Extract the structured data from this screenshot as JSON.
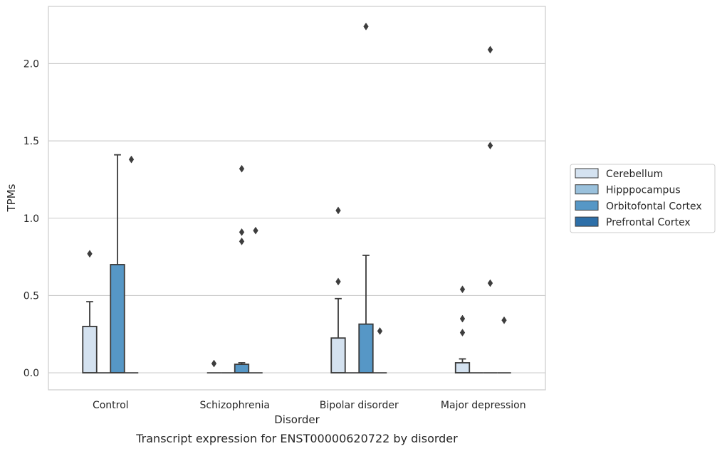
{
  "chart_data": {
    "type": "box",
    "xlabel": "Disorder",
    "ylabel": "TPMs",
    "caption": "Transcript expression for ENST00000620722 by disorder",
    "categories": [
      "Control",
      "Schizophrenia",
      "Bipolar disorder",
      "Major depression"
    ],
    "ylim": [
      -0.11,
      2.37
    ],
    "yticks": [
      "0.0",
      "0.5",
      "1.0",
      "1.5",
      "2.0"
    ],
    "grid": true,
    "legend_position": "right",
    "series": [
      {
        "name": "Cerebellum",
        "color": "#d4e2f0",
        "boxes": [
          {
            "q1": 0.0,
            "median": 0.0,
            "q3": 0.3,
            "whisker_low": 0.0,
            "whisker_high": 0.46,
            "outliers": [
              0.77
            ]
          },
          {
            "q1": 0.0,
            "median": 0.0,
            "q3": 0.0,
            "whisker_low": 0.0,
            "whisker_high": 0.0,
            "outliers": [
              0.06
            ]
          },
          {
            "q1": 0.0,
            "median": 0.0,
            "q3": 0.225,
            "whisker_low": 0.0,
            "whisker_high": 0.48,
            "outliers": [
              0.59,
              1.05
            ]
          },
          {
            "q1": 0.0,
            "median": 0.0,
            "q3": 0.065,
            "whisker_low": 0.0,
            "whisker_high": 0.09,
            "outliers": [
              0.26,
              0.35,
              0.54
            ]
          }
        ]
      },
      {
        "name": "Hipppocampus",
        "color": "#9ac1dc",
        "boxes": [
          {
            "q1": 0.0,
            "median": 0.0,
            "q3": 0.0,
            "whisker_low": 0.0,
            "whisker_high": 0.0,
            "outliers": []
          },
          {
            "q1": 0.0,
            "median": 0.0,
            "q3": 0.0,
            "whisker_low": 0.0,
            "whisker_high": 0.0,
            "outliers": []
          },
          {
            "q1": 0.0,
            "median": 0.0,
            "q3": 0.0,
            "whisker_low": 0.0,
            "whisker_high": 0.0,
            "outliers": []
          },
          {
            "q1": 0.0,
            "median": 0.0,
            "q3": 0.0,
            "whisker_low": 0.0,
            "whisker_high": 0.0,
            "outliers": []
          }
        ]
      },
      {
        "name": "Orbitofontal Cortex",
        "color": "#5697c6",
        "boxes": [
          {
            "q1": 0.0,
            "median": 0.0,
            "q3": 0.7,
            "whisker_low": 0.0,
            "whisker_high": 1.41,
            "outliers": []
          },
          {
            "q1": 0.0,
            "median": 0.0,
            "q3": 0.055,
            "whisker_low": 0.0,
            "whisker_high": 0.065,
            "outliers": [
              0.85,
              0.91,
              1.32
            ]
          },
          {
            "q1": 0.0,
            "median": 0.0,
            "q3": 0.315,
            "whisker_low": 0.0,
            "whisker_high": 0.76,
            "outliers": [
              2.24
            ]
          },
          {
            "q1": 0.0,
            "median": 0.0,
            "q3": 0.0,
            "whisker_low": 0.0,
            "whisker_high": 0.0,
            "outliers": [
              0.58,
              1.47,
              2.09
            ]
          }
        ]
      },
      {
        "name": "Prefrontal Cortex",
        "color": "#2d6fa8",
        "boxes": [
          {
            "q1": 0.0,
            "median": 0.0,
            "q3": 0.0,
            "whisker_low": 0.0,
            "whisker_high": 0.0,
            "outliers": [
              1.38
            ]
          },
          {
            "q1": 0.0,
            "median": 0.0,
            "q3": 0.0,
            "whisker_low": 0.0,
            "whisker_high": 0.0,
            "outliers": [
              0.92
            ]
          },
          {
            "q1": 0.0,
            "median": 0.0,
            "q3": 0.0,
            "whisker_low": 0.0,
            "whisker_high": 0.0,
            "outliers": [
              0.27
            ]
          },
          {
            "q1": 0.0,
            "median": 0.0,
            "q3": 0.0,
            "whisker_low": 0.0,
            "whisker_high": 0.0,
            "outliers": [
              0.34
            ]
          }
        ]
      }
    ]
  }
}
